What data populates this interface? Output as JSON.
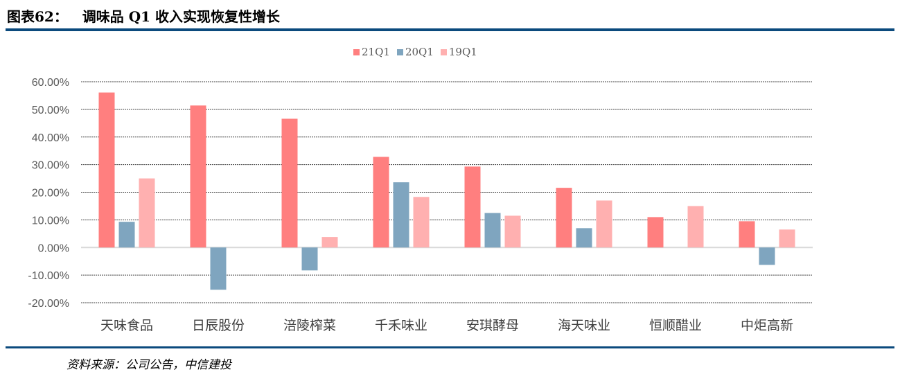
{
  "header": {
    "figure_label": "图表62：",
    "title": "调味品 Q1 收入实现恢复性增长"
  },
  "footer": {
    "source": "资料来源：公司公告，中信建投"
  },
  "legend": [
    {
      "name": "21Q1",
      "color": "#ff7f7f"
    },
    {
      "name": "20Q1",
      "color": "#7fa5bf"
    },
    {
      "name": "19Q1",
      "color": "#ffb0b0"
    }
  ],
  "chart_data": {
    "type": "bar",
    "title": "调味品 Q1 收入实现恢复性增长",
    "xlabel": "",
    "ylabel": "",
    "ylim": [
      -0.2,
      0.6
    ],
    "yticks": [
      "60.00%",
      "50.00%",
      "40.00%",
      "30.00%",
      "20.00%",
      "10.00%",
      "0.00%",
      "-10.00%",
      "-20.00%"
    ],
    "grid": true,
    "legend_position": "top",
    "categories": [
      "天味食品",
      "日辰股份",
      "涪陵榨菜",
      "千禾味业",
      "安琪酵母",
      "海天味业",
      "恒顺醋业",
      "中炬高新"
    ],
    "series": [
      {
        "name": "21Q1",
        "color": "#ff7f7f",
        "values": [
          0.561,
          0.514,
          0.466,
          0.328,
          0.293,
          0.216,
          0.11,
          0.095
        ]
      },
      {
        "name": "20Q1",
        "color": "#7fa5bf",
        "values": [
          0.093,
          -0.153,
          -0.083,
          0.236,
          0.125,
          0.07,
          null,
          -0.063
        ]
      },
      {
        "name": "19Q1",
        "color": "#ffb0b0",
        "values": [
          0.25,
          null,
          0.038,
          0.183,
          0.115,
          0.17,
          0.15,
          0.065
        ]
      }
    ]
  }
}
